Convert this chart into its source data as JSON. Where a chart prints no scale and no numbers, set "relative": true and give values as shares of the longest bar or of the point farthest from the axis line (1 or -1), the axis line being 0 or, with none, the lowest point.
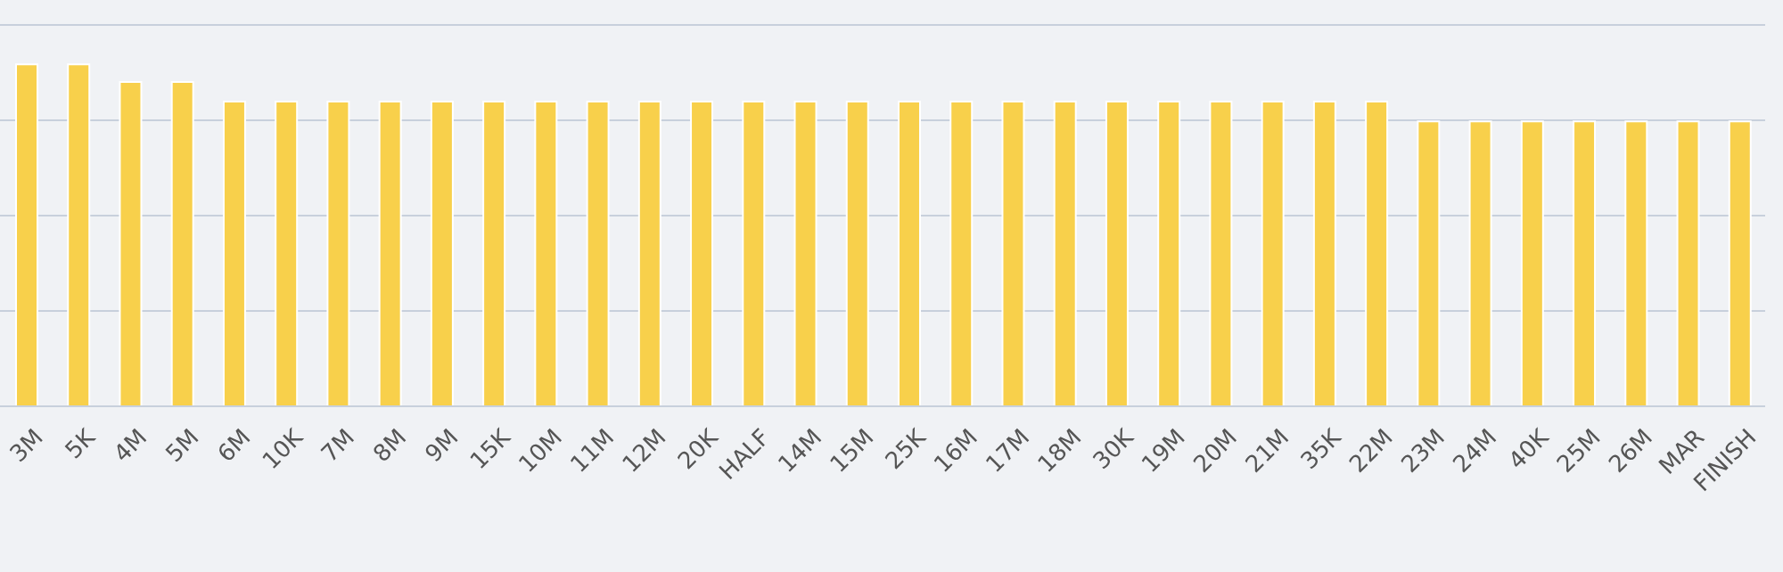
{
  "chart_data": {
    "type": "bar",
    "relative": true,
    "grid": "y",
    "categories": [
      "3M",
      "5K",
      "4M",
      "5M",
      "6M",
      "10K",
      "7M",
      "8M",
      "9M",
      "15K",
      "10M",
      "11M",
      "12M",
      "20K",
      "HALF",
      "14M",
      "15M",
      "25K",
      "16M",
      "17M",
      "18M",
      "30K",
      "19M",
      "20M",
      "21M",
      "35K",
      "22M",
      "23M",
      "24M",
      "40K",
      "25M",
      "26M",
      "MAR",
      "FINISH"
    ],
    "color": "#f8d04b",
    "values": [
      1,
      1,
      0.948,
      0.948,
      0.891,
      0.891,
      0.891,
      0.891,
      0.891,
      0.891,
      0.891,
      0.891,
      0.891,
      0.891,
      0.891,
      0.891,
      0.891,
      0.891,
      0.891,
      0.891,
      0.891,
      0.891,
      0.891,
      0.891,
      0.891,
      0.891,
      0.891,
      0.833,
      0.833,
      0.833,
      0.833,
      0.833,
      0.833,
      0.833
    ]
  }
}
